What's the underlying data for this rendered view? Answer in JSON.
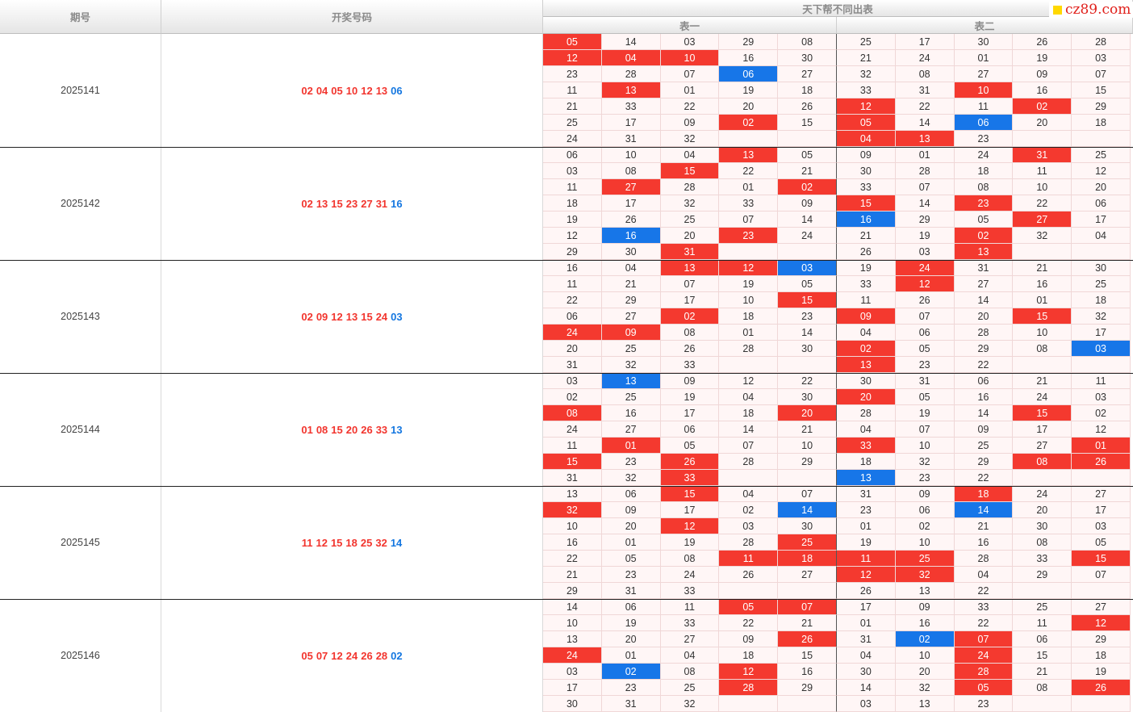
{
  "header": {
    "period": "期号",
    "draw": "开奖号码",
    "main": "天下帮不同出表",
    "table1": "表一",
    "table2": "表二"
  },
  "watermark": {
    "text": "cz89.com"
  },
  "colors": {
    "red": "#f4392f",
    "blue": "#1776e8"
  },
  "periods": [
    {
      "period": "2025141",
      "reds": [
        "02",
        "04",
        "05",
        "10",
        "12",
        "13"
      ],
      "blue": "06",
      "grid": [
        [
          [
            "05",
            "r"
          ],
          "14",
          "03",
          "29",
          "08",
          "25",
          "17",
          "30",
          "26",
          "28"
        ],
        [
          [
            "12",
            "r"
          ],
          [
            "04",
            "r"
          ],
          [
            "10",
            "r"
          ],
          "16",
          "30",
          "21",
          "24",
          "01",
          "19",
          "03"
        ],
        [
          "23",
          "28",
          "07",
          [
            "06",
            "b"
          ],
          "27",
          "32",
          "08",
          "27",
          "09",
          "07"
        ],
        [
          "11",
          [
            "13",
            "r"
          ],
          "01",
          "19",
          "18",
          "33",
          "31",
          [
            "10",
            "r"
          ],
          "16",
          "15"
        ],
        [
          "21",
          "33",
          "22",
          "20",
          "26",
          [
            "12",
            "r"
          ],
          "22",
          "11",
          [
            "02",
            "r"
          ],
          "29"
        ],
        [
          "25",
          "17",
          "09",
          [
            "02",
            "r"
          ],
          "15",
          [
            "05",
            "r"
          ],
          "14",
          [
            "06",
            "b"
          ],
          "20",
          "18"
        ],
        [
          "24",
          "31",
          "32",
          "",
          "",
          [
            "04",
            "r"
          ],
          [
            "13",
            "r"
          ],
          "23",
          "",
          ""
        ]
      ]
    },
    {
      "period": "2025142",
      "reds": [
        "02",
        "13",
        "15",
        "23",
        "27",
        "31"
      ],
      "blue": "16",
      "grid": [
        [
          "06",
          "10",
          "04",
          [
            "13",
            "r"
          ],
          "05",
          "09",
          "01",
          "24",
          [
            "31",
            "r"
          ],
          "25"
        ],
        [
          "03",
          "08",
          [
            "15",
            "r"
          ],
          "22",
          "21",
          "30",
          "28",
          "18",
          "11",
          "12"
        ],
        [
          "11",
          [
            "27",
            "r"
          ],
          "28",
          "01",
          [
            "02",
            "r"
          ],
          "33",
          "07",
          "08",
          "10",
          "20"
        ],
        [
          "18",
          "17",
          "32",
          "33",
          "09",
          [
            "15",
            "r"
          ],
          "14",
          [
            "23",
            "r"
          ],
          "22",
          "06"
        ],
        [
          "19",
          "26",
          "25",
          "07",
          "14",
          [
            "16",
            "b"
          ],
          "29",
          "05",
          [
            "27",
            "r"
          ],
          "17"
        ],
        [
          "12",
          [
            "16",
            "b"
          ],
          "20",
          [
            "23",
            "r"
          ],
          "24",
          "21",
          "19",
          [
            "02",
            "r"
          ],
          "32",
          "04"
        ],
        [
          "29",
          "30",
          [
            "31",
            "r"
          ],
          "",
          "",
          "26",
          "03",
          [
            "13",
            "r"
          ],
          "",
          ""
        ]
      ]
    },
    {
      "period": "2025143",
      "reds": [
        "02",
        "09",
        "12",
        "13",
        "15",
        "24"
      ],
      "blue": "03",
      "grid": [
        [
          "16",
          "04",
          [
            "13",
            "r"
          ],
          [
            "12",
            "r"
          ],
          [
            "03",
            "b"
          ],
          "19",
          [
            "24",
            "r"
          ],
          "31",
          "21",
          "30"
        ],
        [
          "11",
          "21",
          "07",
          "19",
          "05",
          "33",
          [
            "12",
            "r"
          ],
          "27",
          "16",
          "25"
        ],
        [
          "22",
          "29",
          "17",
          "10",
          [
            "15",
            "r"
          ],
          "11",
          "26",
          "14",
          "01",
          "18"
        ],
        [
          "06",
          "27",
          [
            "02",
            "r"
          ],
          "18",
          "23",
          [
            "09",
            "r"
          ],
          "07",
          "20",
          [
            "15",
            "r"
          ],
          "32"
        ],
        [
          [
            "24",
            "r"
          ],
          [
            "09",
            "r"
          ],
          "08",
          "01",
          "14",
          "04",
          "06",
          "28",
          "10",
          "17"
        ],
        [
          "20",
          "25",
          "26",
          "28",
          "30",
          [
            "02",
            "r"
          ],
          "05",
          "29",
          "08",
          [
            "03",
            "b"
          ]
        ],
        [
          "31",
          "32",
          "33",
          "",
          "",
          [
            "13",
            "r"
          ],
          "23",
          "22",
          "",
          ""
        ]
      ]
    },
    {
      "period": "2025144",
      "reds": [
        "01",
        "08",
        "15",
        "20",
        "26",
        "33"
      ],
      "blue": "13",
      "grid": [
        [
          "03",
          [
            "13",
            "b"
          ],
          "09",
          "12",
          "22",
          "30",
          "31",
          "06",
          "21",
          "11"
        ],
        [
          "02",
          "25",
          "19",
          "04",
          "30",
          [
            "20",
            "r"
          ],
          "05",
          "16",
          "24",
          "03"
        ],
        [
          [
            "08",
            "r"
          ],
          "16",
          "17",
          "18",
          [
            "20",
            "r"
          ],
          "28",
          "19",
          "14",
          [
            "15",
            "r"
          ],
          "02"
        ],
        [
          "24",
          "27",
          "06",
          "14",
          "21",
          "04",
          "07",
          "09",
          "17",
          "12"
        ],
        [
          "11",
          [
            "01",
            "r"
          ],
          "05",
          "07",
          "10",
          [
            "33",
            "r"
          ],
          "10",
          "25",
          "27",
          [
            "01",
            "r"
          ]
        ],
        [
          [
            "15",
            "r"
          ],
          "23",
          [
            "26",
            "r"
          ],
          "28",
          "29",
          "18",
          "32",
          "29",
          [
            "08",
            "r"
          ],
          [
            "26",
            "r"
          ]
        ],
        [
          "31",
          "32",
          [
            "33",
            "r"
          ],
          "",
          "",
          [
            "13",
            "b"
          ],
          "23",
          "22",
          "",
          ""
        ]
      ]
    },
    {
      "period": "2025145",
      "reds": [
        "11",
        "12",
        "15",
        "18",
        "25",
        "32"
      ],
      "blue": "14",
      "grid": [
        [
          "13",
          "06",
          [
            "15",
            "r"
          ],
          "04",
          "07",
          "31",
          "09",
          [
            "18",
            "r"
          ],
          "24",
          "27"
        ],
        [
          [
            "32",
            "r"
          ],
          "09",
          "17",
          "02",
          [
            "14",
            "b"
          ],
          "23",
          "06",
          [
            "14",
            "b"
          ],
          "20",
          "17"
        ],
        [
          "10",
          "20",
          [
            "12",
            "r"
          ],
          "03",
          "30",
          "01",
          "02",
          "21",
          "30",
          "03"
        ],
        [
          "16",
          "01",
          "19",
          "28",
          [
            "25",
            "r"
          ],
          "19",
          "10",
          "16",
          "08",
          "05"
        ],
        [
          "22",
          "05",
          "08",
          [
            "11",
            "r"
          ],
          [
            "18",
            "r"
          ],
          [
            "11",
            "r"
          ],
          [
            "25",
            "r"
          ],
          "28",
          "33",
          [
            "15",
            "r"
          ]
        ],
        [
          "21",
          "23",
          "24",
          "26",
          "27",
          [
            "12",
            "r"
          ],
          [
            "32",
            "r"
          ],
          "04",
          "29",
          "07"
        ],
        [
          "29",
          "31",
          "33",
          "",
          "",
          "26",
          "13",
          "22",
          "",
          ""
        ]
      ]
    },
    {
      "period": "2025146",
      "reds": [
        "05",
        "07",
        "12",
        "24",
        "26",
        "28"
      ],
      "blue": "02",
      "grid": [
        [
          "14",
          "06",
          "11",
          [
            "05",
            "r"
          ],
          [
            "07",
            "r"
          ],
          "17",
          "09",
          "33",
          "25",
          "27"
        ],
        [
          "10",
          "19",
          "33",
          "22",
          "21",
          "01",
          "16",
          "22",
          "11",
          [
            "12",
            "r"
          ]
        ],
        [
          "13",
          "20",
          "27",
          "09",
          [
            "26",
            "r"
          ],
          "31",
          [
            "02",
            "b"
          ],
          [
            "07",
            "r"
          ],
          "06",
          "29"
        ],
        [
          [
            "24",
            "r"
          ],
          "01",
          "04",
          "18",
          "15",
          "04",
          "10",
          [
            "24",
            "r"
          ],
          "15",
          "18"
        ],
        [
          "03",
          [
            "02",
            "b"
          ],
          "08",
          [
            "12",
            "r"
          ],
          "16",
          "30",
          "20",
          [
            "28",
            "r"
          ],
          "21",
          "19"
        ],
        [
          "17",
          "23",
          "25",
          [
            "28",
            "r"
          ],
          "29",
          "14",
          "32",
          [
            "05",
            "r"
          ],
          "08",
          [
            "26",
            "r"
          ]
        ],
        [
          "30",
          "31",
          "32",
          "",
          "",
          "03",
          "13",
          "23",
          "",
          ""
        ]
      ]
    }
  ]
}
